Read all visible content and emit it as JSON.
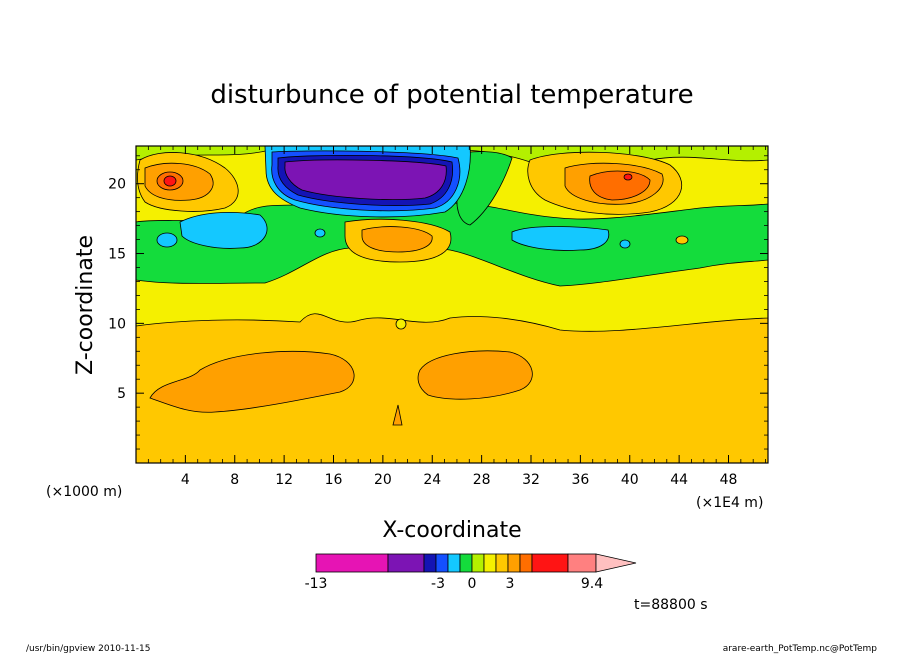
{
  "chart_data": {
    "type": "heatmap",
    "title": "disturbunce of potential temperature",
    "xlabel": "X-coordinate",
    "ylabel": "Z-coordinate",
    "x_unit_left": "(×1000 m)",
    "x_unit_right": "(×1E4 m)",
    "x_ticks": [
      4,
      8,
      12,
      16,
      20,
      24,
      28,
      32,
      36,
      40,
      44,
      48
    ],
    "y_ticks": [
      5,
      10,
      15,
      20
    ],
    "xlim": [
      0,
      51.2
    ],
    "ylim": [
      0,
      22.7
    ],
    "time_label": "t=88800 s",
    "colorbar": {
      "colors": [
        "#e614b4",
        "#7c14b4",
        "#1414b4",
        "#1450ff",
        "#14c8ff",
        "#14dc3c",
        "#b4f000",
        "#f5f000",
        "#ffc800",
        "#ffa000",
        "#ff6e00",
        "#ff1414",
        "#ff8080",
        "#ffc0c0"
      ],
      "tick_labels": [
        "-13",
        "-3",
        "0",
        "3",
        "9.4"
      ]
    },
    "regions": [
      {
        "label": "negative anomaly, min ~-13",
        "x_range": [
          11,
          27
        ],
        "z_range": [
          19.5,
          22.5
        ],
        "color": "#7c14b4"
      },
      {
        "label": "positive anomaly",
        "x_range": [
          1.5,
          7
        ],
        "z_range": [
          18.5,
          21.5
        ],
        "color": "#ff6e00"
      },
      {
        "label": "positive anomaly",
        "x_range": [
          34,
          43
        ],
        "z_range": [
          18.5,
          21.5
        ],
        "color": "#ff6e00"
      },
      {
        "label": "positive anomaly",
        "x_range": [
          17,
          24
        ],
        "z_range": [
          15.5,
          17.5
        ],
        "color": "#ffa000"
      },
      {
        "label": "positive anomaly",
        "x_range": [
          1,
          18
        ],
        "z_range": [
          3.5,
          8
        ],
        "color": "#ffa000"
      },
      {
        "label": "positive anomaly",
        "x_range": [
          22,
          32
        ],
        "z_range": [
          4,
          7.5
        ],
        "color": "#ffa000"
      }
    ]
  },
  "footer": {
    "left": "/usr/bin/gpview   2010-11-15",
    "right": "arare-earth_PotTemp.nc@PotTemp"
  }
}
